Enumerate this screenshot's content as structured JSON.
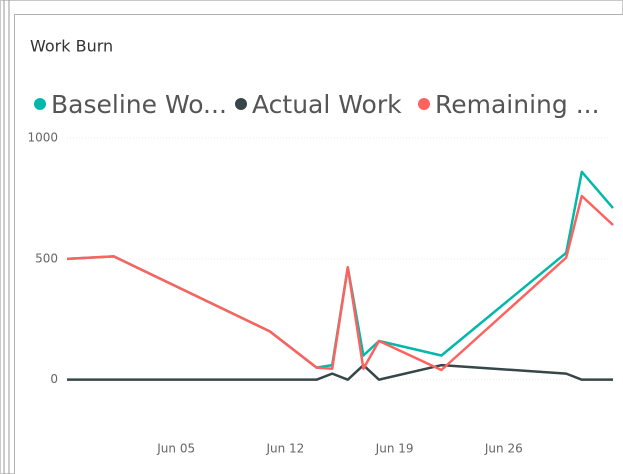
{
  "chart_data": {
    "type": "line",
    "title": "Work Burn",
    "x": [
      -2,
      1,
      11,
      14,
      15,
      16,
      17,
      18,
      22,
      30,
      31,
      33
    ],
    "series": [
      {
        "name": "Baseline Wo...",
        "color": "#01b8aa",
        "values": [
          500,
          510,
          200,
          50,
          60,
          465,
          100,
          160,
          100,
          525,
          860,
          710
        ]
      },
      {
        "name": "Actual Work",
        "color": "#374649",
        "values": [
          0,
          0,
          0,
          0,
          25,
          0,
          60,
          0,
          60,
          25,
          0,
          0
        ]
      },
      {
        "name": "Remaining ...",
        "color": "#fd625e",
        "values": [
          500,
          510,
          200,
          50,
          45,
          465,
          45,
          160,
          40,
          505,
          760,
          640
        ]
      }
    ],
    "xlim": [
      -2,
      33
    ],
    "xticks": [
      {
        "value": 5,
        "label": "Jun 05"
      },
      {
        "value": 12,
        "label": "Jun 12"
      },
      {
        "value": 19,
        "label": "Jun 19"
      },
      {
        "value": 26,
        "label": "Jun 26"
      }
    ],
    "ylim": [
      -200,
      1000
    ],
    "yticks": [
      0,
      500,
      1000
    ],
    "grid": true
  }
}
